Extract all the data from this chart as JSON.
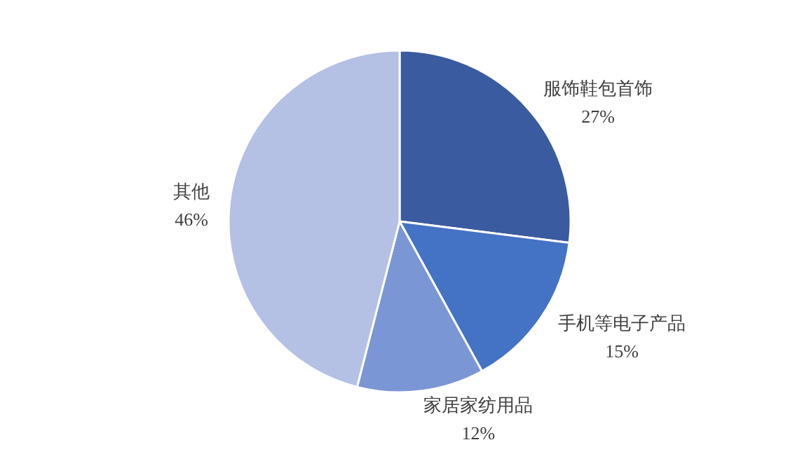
{
  "chart_data": {
    "type": "pie",
    "categories": [
      "服饰鞋包首饰",
      "手机等电子产品",
      "家居家纺用品",
      "其他"
    ],
    "values": [
      27,
      15,
      12,
      46
    ],
    "colors": [
      "#3a5ba0",
      "#4472c4",
      "#7b96d4",
      "#b4c0e4"
    ],
    "value_labels": [
      "27%",
      "15%",
      "12%",
      "46%"
    ]
  }
}
